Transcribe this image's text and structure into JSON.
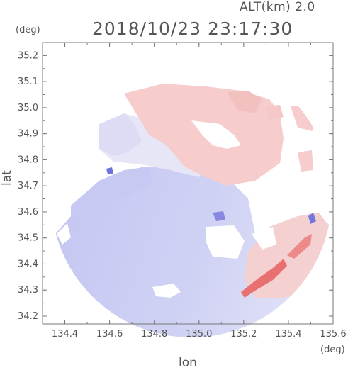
{
  "header": {
    "altitude_label": "ALT(km) 2.0",
    "timestamp": "2018/10/23 23:17:30"
  },
  "axes": {
    "y_unit": "(deg)",
    "x_unit": "(deg)",
    "xlabel": "lon",
    "ylabel": "lat"
  },
  "chart_data": {
    "type": "heatmap",
    "title": "2018/10/23 23:17:30",
    "xlabel": "lon",
    "ylabel": "lat",
    "xlim": [
      134.3,
      135.6
    ],
    "ylim": [
      34.17,
      35.25
    ],
    "x_ticks": [
      "134.4",
      "134.6",
      "134.8",
      "135.0",
      "135.2",
      "135.4",
      "135.6"
    ],
    "y_ticks": [
      "34.2",
      "34.3",
      "34.4",
      "34.5",
      "34.6",
      "34.7",
      "34.8",
      "34.9",
      "35.0",
      "35.1",
      "35.2"
    ],
    "colors": {
      "negative": "#b8bcf0",
      "neutral": "#eeeef8",
      "positive": "#f7c6c6",
      "strong_positive": "#e45a5a"
    },
    "grid": false
  }
}
